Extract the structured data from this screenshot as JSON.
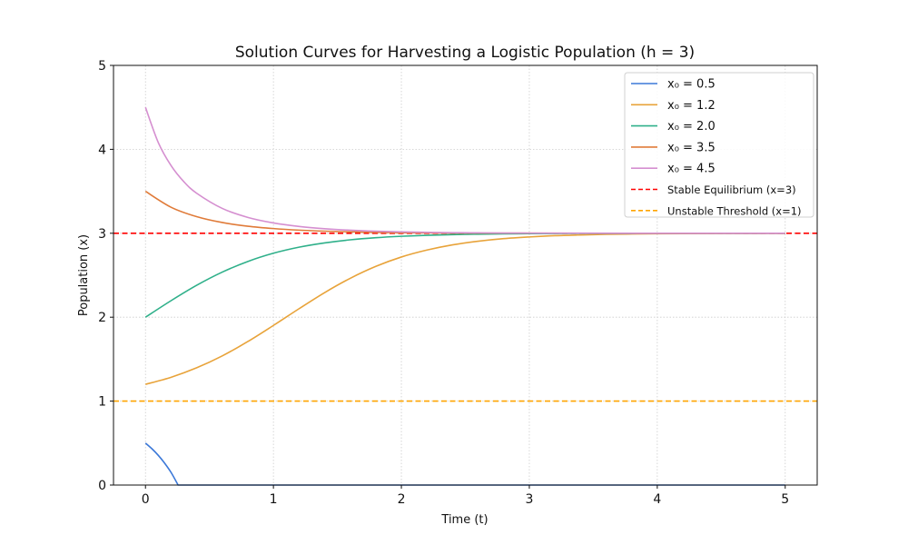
{
  "chart_data": {
    "type": "line",
    "title": "Solution Curves for Harvesting a Logistic Population (h = 3)",
    "xlabel": "Time (t)",
    "ylabel": "Population (x)",
    "xlim": [
      -0.25,
      5.25
    ],
    "ylim": [
      0,
      5
    ],
    "xticks": [
      "0",
      "1",
      "2",
      "3",
      "4",
      "5"
    ],
    "yticks": [
      "0",
      "1",
      "2",
      "3",
      "4",
      "5"
    ],
    "grid": true,
    "legend_position": "top-right",
    "series": [
      {
        "name": "x₀ = 0.5",
        "color": "#3b78d8",
        "x": [
          0,
          0.05,
          0.1,
          0.15,
          0.2,
          0.255,
          5
        ],
        "y": [
          0.5,
          0.433,
          0.354,
          0.26,
          0.15,
          0,
          0
        ]
      },
      {
        "name": "x₀ = 1.2",
        "color": "#e8a33a",
        "x": [
          0,
          0.2,
          0.4,
          0.6,
          0.8,
          1.0,
          1.2,
          1.4,
          1.6,
          1.8,
          2.0,
          2.2,
          2.4,
          2.6,
          2.8,
          3.0,
          3.2,
          3.4,
          3.6,
          3.8,
          4.0,
          4.2,
          4.4,
          4.6,
          4.8,
          5.0
        ],
        "y": [
          1.2,
          1.284,
          1.397,
          1.539,
          1.71,
          1.902,
          2.101,
          2.293,
          2.463,
          2.605,
          2.717,
          2.8,
          2.862,
          2.905,
          2.936,
          2.956,
          2.971,
          2.98,
          2.987,
          2.991,
          2.994,
          2.996,
          2.997,
          2.998,
          2.999,
          2.999
        ]
      },
      {
        "name": "x₀ = 2.0",
        "color": "#2fb08a",
        "x": [
          0,
          0.2,
          0.4,
          0.6,
          0.8,
          1.0,
          1.2,
          1.4,
          1.6,
          1.8,
          2.0,
          2.2,
          2.4,
          2.6,
          2.8,
          3.0,
          3.2,
          3.4,
          3.6,
          3.8,
          4.0,
          5.0
        ],
        "y": [
          2.0,
          2.197,
          2.38,
          2.537,
          2.664,
          2.762,
          2.834,
          2.885,
          2.922,
          2.947,
          2.964,
          2.976,
          2.984,
          2.989,
          2.993,
          2.995,
          2.997,
          2.998,
          2.999,
          2.999,
          3.0,
          3.0
        ]
      },
      {
        "name": "x₀ = 3.5",
        "color": "#e07b39",
        "x": [
          0,
          0.2,
          0.4,
          0.6,
          0.8,
          1.0,
          1.2,
          1.4,
          1.6,
          1.8,
          2.0,
          2.2,
          2.4,
          2.6,
          2.8,
          3.0,
          4.0,
          5.0
        ],
        "y": [
          3.5,
          3.31,
          3.198,
          3.128,
          3.084,
          3.056,
          3.037,
          3.025,
          3.017,
          3.011,
          3.007,
          3.005,
          3.003,
          3.002,
          3.001,
          3.001,
          3.0,
          3.0
        ]
      },
      {
        "name": "x₀ = 4.5",
        "color": "#d58fd0",
        "x": [
          0,
          0.1,
          0.2,
          0.3,
          0.4,
          0.6,
          0.8,
          1.0,
          1.2,
          1.4,
          1.6,
          1.8,
          2.0,
          2.2,
          2.4,
          2.6,
          2.8,
          3.0,
          3.2,
          4.0,
          5.0
        ],
        "y": [
          4.5,
          4.081,
          3.806,
          3.614,
          3.477,
          3.296,
          3.189,
          3.123,
          3.081,
          3.054,
          3.036,
          3.024,
          3.016,
          3.011,
          3.007,
          3.005,
          3.003,
          3.002,
          3.001,
          3.0,
          3.0
        ]
      }
    ],
    "reference_lines": [
      {
        "name": "Stable Equilibrium (x=3)",
        "y": 3,
        "color": "#ff0000",
        "style": "dashed"
      },
      {
        "name": "Unstable Threshold (x=1)",
        "y": 1,
        "color": "#ffa500",
        "style": "dashed"
      }
    ]
  }
}
